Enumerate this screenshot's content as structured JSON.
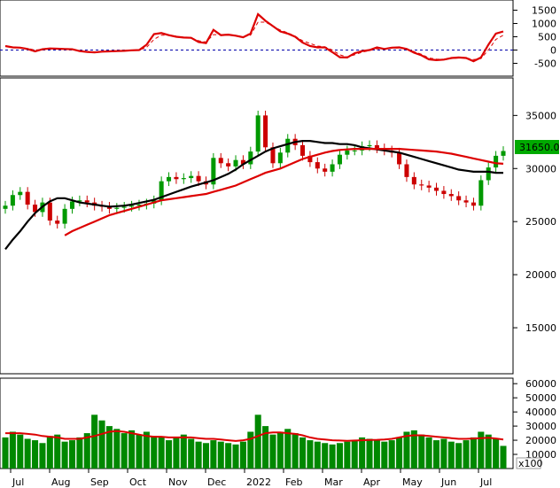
{
  "chart_data": [
    {
      "type": "line",
      "panel": "oscillator",
      "y_ticks": [
        1500,
        1000,
        500,
        0,
        -500
      ],
      "y_tick_labels": [
        "1500",
        "1000",
        "500",
        "0",
        "-500"
      ],
      "ylim": [
        -850,
        1750
      ],
      "zero_line": true,
      "series": [
        {
          "color": "#dd0000",
          "style": "solid",
          "values": [
            150,
            100,
            90,
            40,
            -50,
            30,
            60,
            50,
            40,
            30,
            -40,
            -70,
            -90,
            -60,
            -50,
            -40,
            -30,
            -10,
            0,
            200,
            600,
            640,
            560,
            500,
            470,
            460,
            300,
            260,
            760,
            560,
            580,
            540,
            480,
            620,
            1350,
            1100,
            900,
            700,
            620,
            500,
            280,
            150,
            100,
            100,
            -80,
            -270,
            -280,
            -120,
            -40,
            0,
            100,
            40,
            90,
            100,
            40,
            -100,
            -200,
            -350,
            -380,
            -360,
            -300,
            -280,
            -300,
            -420,
            -280,
            200,
            620,
            700
          ]
        },
        {
          "color": "#dd0000",
          "style": "dashed",
          "values": [
            150,
            110,
            90,
            60,
            0,
            20,
            40,
            50,
            45,
            30,
            -20,
            -50,
            -70,
            -60,
            -55,
            -45,
            -35,
            -15,
            -5,
            100,
            400,
            560,
            560,
            520,
            480,
            460,
            350,
            300,
            580,
            580,
            560,
            550,
            500,
            560,
            1050,
            1050,
            900,
            750,
            650,
            520,
            350,
            250,
            150,
            120,
            0,
            -180,
            -260,
            -180,
            -80,
            -20,
            50,
            40,
            70,
            80,
            50,
            -60,
            -160,
            -300,
            -340,
            -350,
            -320,
            -300,
            -300,
            -360,
            -320,
            0,
            400,
            560
          ]
        }
      ]
    },
    {
      "type": "candlestick",
      "panel": "price",
      "y_ticks": [
        35000,
        30000,
        25000,
        20000,
        15000
      ],
      "y_tick_labels": [
        "35000",
        "30000",
        "25000",
        "20000",
        "15000"
      ],
      "ylim": [
        11000,
        38200
      ],
      "last_price_label": "31650.00",
      "x_labels": [
        "Jul",
        "Aug",
        "Sep",
        "Oct",
        "Nov",
        "Dec",
        "2022",
        "Feb",
        "Mar",
        "Apr",
        "May",
        "Jun",
        "Jul"
      ],
      "closes": [
        26500,
        27500,
        27800,
        26600,
        25900,
        26800,
        25100,
        24800,
        26200,
        26900,
        27000,
        26800,
        26500,
        26400,
        26200,
        26300,
        26400,
        26500,
        26600,
        26700,
        27000,
        28800,
        29200,
        29000,
        29100,
        29300,
        28800,
        28500,
        31000,
        30500,
        30200,
        30800,
        30400,
        31600,
        35000,
        32000,
        30500,
        31500,
        32800,
        32200,
        31200,
        30600,
        30000,
        29700,
        30400,
        31300,
        31700,
        31700,
        32100,
        32200,
        31900,
        31700,
        31500,
        30400,
        29200,
        28500,
        28400,
        28200,
        27900,
        27600,
        27400,
        27000,
        26800,
        26500,
        28900,
        30100,
        31200,
        31650
      ],
      "moving_averages": [
        {
          "color": "#000000",
          "values": [
            22400,
            23300,
            24100,
            25000,
            25800,
            26400,
            26900,
            27200,
            27200,
            27000,
            26800,
            26700,
            26600,
            26500,
            26400,
            26450,
            26500,
            26600,
            26750,
            26900,
            27050,
            27300,
            27550,
            27800,
            28050,
            28300,
            28500,
            28700,
            28900,
            29200,
            29500,
            29900,
            30400,
            30800,
            31200,
            31600,
            31900,
            32100,
            32300,
            32500,
            32600,
            32600,
            32500,
            32400,
            32400,
            32300,
            32300,
            32200,
            32000,
            31900,
            31800,
            31700,
            31600,
            31500,
            31300,
            31100,
            30900,
            30700,
            30500,
            30300,
            30100,
            29900,
            29800,
            29700,
            29700,
            29700,
            29600,
            29600
          ]
        },
        {
          "color": "#dd0000",
          "values": [
            null,
            null,
            null,
            null,
            null,
            null,
            null,
            null,
            23700,
            24100,
            24400,
            24700,
            25000,
            25300,
            25600,
            25800,
            26000,
            26200,
            26400,
            26600,
            26800,
            27000,
            27100,
            27200,
            27300,
            27400,
            27500,
            27600,
            27800,
            28000,
            28200,
            28400,
            28700,
            29000,
            29300,
            29600,
            29800,
            30000,
            30300,
            30600,
            30900,
            31100,
            31300,
            31500,
            31650,
            31750,
            31800,
            31850,
            31850,
            31850,
            31850,
            31850,
            31850,
            31850,
            31800,
            31750,
            31700,
            31650,
            31600,
            31500,
            31400,
            31250,
            31100,
            30950,
            30800,
            30650,
            30500,
            30450
          ]
        }
      ]
    },
    {
      "type": "bar",
      "panel": "volume",
      "y_ticks": [
        60000,
        50000,
        40000,
        30000,
        20000,
        10000
      ],
      "y_tick_labels": [
        "60000",
        "50000",
        "40000",
        "30000",
        "20000",
        "10000"
      ],
      "ylim": [
        0,
        62000
      ],
      "unit_label": "x100",
      "bar_color": "#008800",
      "values": [
        22000,
        26000,
        24000,
        21000,
        20000,
        18000,
        23000,
        24000,
        19000,
        20000,
        22000,
        25000,
        38000,
        34000,
        30000,
        28000,
        25000,
        27000,
        24000,
        26000,
        23000,
        22000,
        20000,
        22000,
        24000,
        21000,
        19000,
        18000,
        20000,
        19000,
        18000,
        17000,
        19000,
        26000,
        38000,
        30000,
        24000,
        26000,
        28000,
        25000,
        22000,
        20000,
        19000,
        18000,
        17000,
        18000,
        19000,
        20000,
        22000,
        21000,
        20000,
        19000,
        20000,
        22000,
        26000,
        27000,
        24000,
        22000,
        20000,
        21000,
        19000,
        18000,
        20000,
        22000,
        26000,
        24000,
        21000,
        16000
      ],
      "moving_average": {
        "color": "#dd0000",
        "values": [
          25000,
          25000,
          25000,
          24500,
          24000,
          23000,
          22500,
          22000,
          21000,
          21000,
          21000,
          22000,
          23000,
          24500,
          26000,
          26500,
          26000,
          25000,
          24000,
          23000,
          22500,
          22500,
          22000,
          22000,
          22000,
          22000,
          21500,
          21000,
          21000,
          20500,
          20000,
          19500,
          20000,
          21000,
          23000,
          25000,
          25500,
          25500,
          25000,
          24500,
          23500,
          22000,
          21000,
          20500,
          20000,
          19800,
          19600,
          19800,
          20000,
          20200,
          20300,
          20500,
          21000,
          22000,
          23000,
          23500,
          23500,
          23000,
          22500,
          22000,
          21500,
          21000,
          21000,
          21200,
          21500,
          21800,
          21200,
          20500
        ]
      }
    }
  ]
}
